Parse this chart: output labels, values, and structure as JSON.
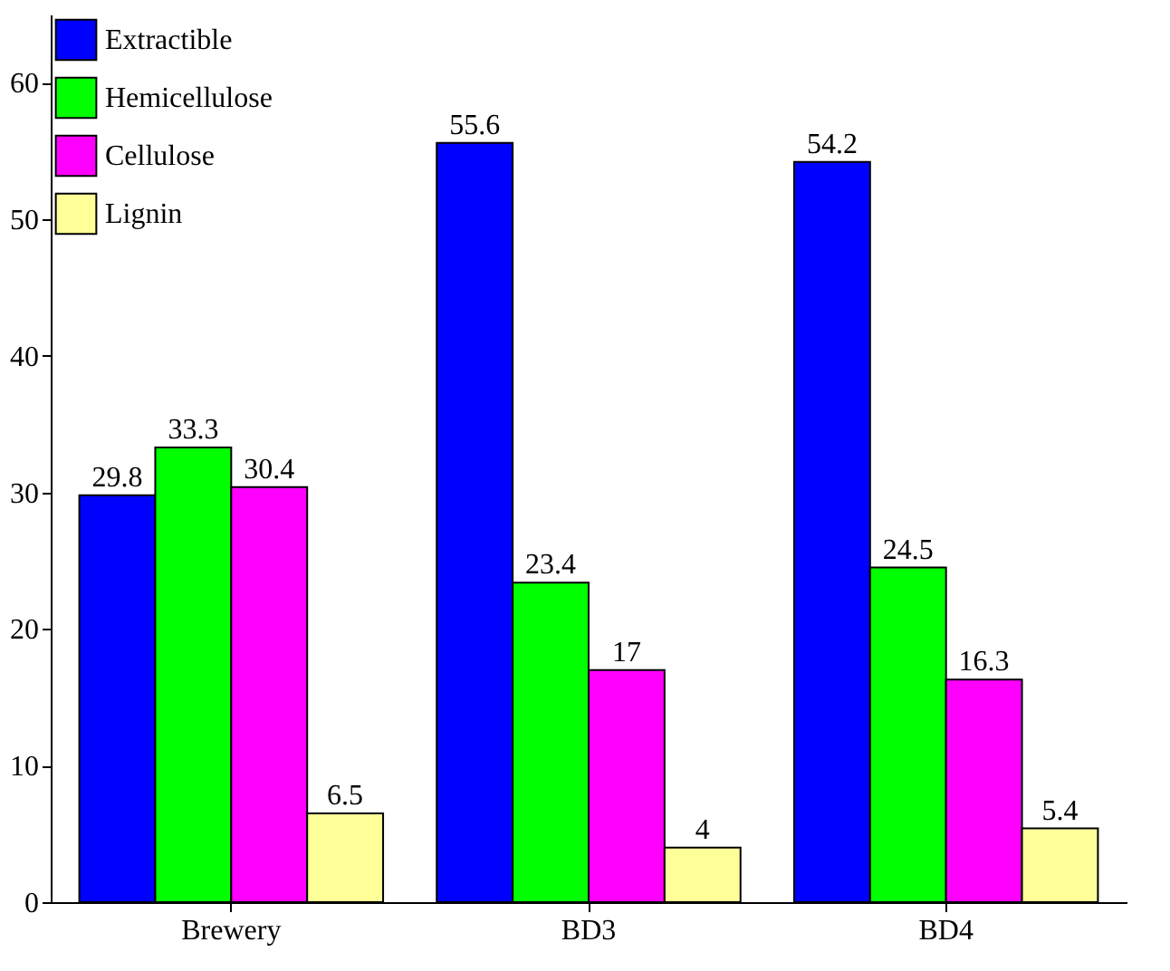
{
  "chart_data": {
    "type": "bar",
    "categories": [
      "Brewery",
      "BD3",
      "BD4"
    ],
    "series": [
      {
        "name": "Extractible",
        "color": "#0000ff",
        "values": [
          29.8,
          55.6,
          54.2
        ]
      },
      {
        "name": "Hemicellulose",
        "color": "#00ff00",
        "values": [
          33.3,
          23.4,
          24.5
        ]
      },
      {
        "name": "Cellulose",
        "color": "#ff00ff",
        "values": [
          30.4,
          17,
          16.3
        ]
      },
      {
        "name": "Lignin",
        "color": "#ffff99",
        "values": [
          6.5,
          4,
          5.4
        ]
      }
    ],
    "ylim": [
      0,
      65
    ],
    "yticks": [
      0,
      10,
      20,
      30,
      40,
      50,
      60
    ],
    "grid": false,
    "legend": "top left",
    "data_labels": true
  }
}
